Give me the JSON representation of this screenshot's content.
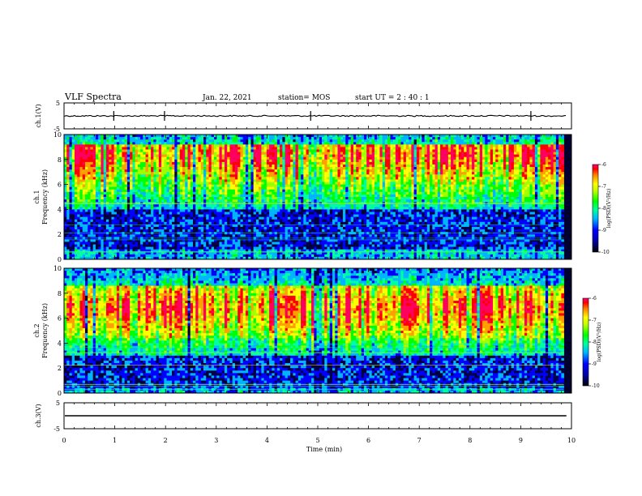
{
  "header": {
    "title": "VLF Spectra",
    "date": "Jan. 22, 2021",
    "station": "station= MOS",
    "start": "start  UT =   2 : 40 : 1"
  },
  "colors": {
    "spectrum": [
      "#000040",
      "#0000ff",
      "#00b4ff",
      "#00ffa0",
      "#00ff00",
      "#a0ff00",
      "#ffff00",
      "#ffa000",
      "#ff0000",
      "#ff0060"
    ]
  },
  "chart_data": [
    {
      "type": "line",
      "panel": "ch1-waveform",
      "ylabel": "ch.1(V)",
      "ylim": [
        -5,
        5
      ],
      "yticks": [
        5,
        -5
      ],
      "xlim": [
        0,
        10
      ],
      "series_level": 0,
      "spikes_min": [
        0.98,
        1.98,
        4.86,
        9.2
      ]
    },
    {
      "type": "heatmap",
      "panel": "ch1-spectrogram",
      "ylabel": "ch.1\nFrequency (kHz)",
      "ylim": [
        0,
        10
      ],
      "yticks": [
        0,
        2,
        4,
        6,
        8,
        10
      ],
      "xlim": [
        0,
        10
      ],
      "data_end_min": 9.85,
      "hot_band_khz": [
        5.5,
        9.2
      ],
      "peak_khz": 8.4,
      "quiet_band_khz": [
        0.8,
        4.0
      ],
      "colorbar": {
        "label": "log(PSD)(V²/Hz)",
        "ticks": [
          -6,
          -7,
          -8,
          -9,
          -10
        ],
        "range": [
          -10,
          -6
        ]
      }
    },
    {
      "type": "heatmap",
      "panel": "ch2-spectrogram",
      "ylabel": "ch.2\nFrequency (kHz)",
      "ylim": [
        0,
        10
      ],
      "yticks": [
        0,
        2,
        4,
        6,
        8,
        10
      ],
      "xlim": [
        0,
        10
      ],
      "data_end_min": 9.85,
      "hot_band_khz": [
        4.5,
        8.5
      ],
      "peak_khz": 6.8,
      "quiet_band_khz": [
        0.5,
        3.0
      ],
      "colorbar": {
        "label": "log(PSD)(V²/Hz)",
        "ticks": [
          -6,
          -7,
          -8,
          -9,
          -10
        ],
        "range": [
          -10,
          -6
        ]
      }
    },
    {
      "type": "line",
      "panel": "ch3-waveform",
      "ylabel": "ch.3(V)",
      "ylim": [
        -5,
        5
      ],
      "yticks": [
        5,
        -5
      ],
      "xlim": [
        0,
        10
      ],
      "series_level": 0,
      "spikes_min": []
    }
  ],
  "xaxis": {
    "label": "Time  (min)",
    "ticks": [
      0,
      1,
      2,
      3,
      4,
      5,
      6,
      7,
      8,
      9,
      10
    ]
  }
}
